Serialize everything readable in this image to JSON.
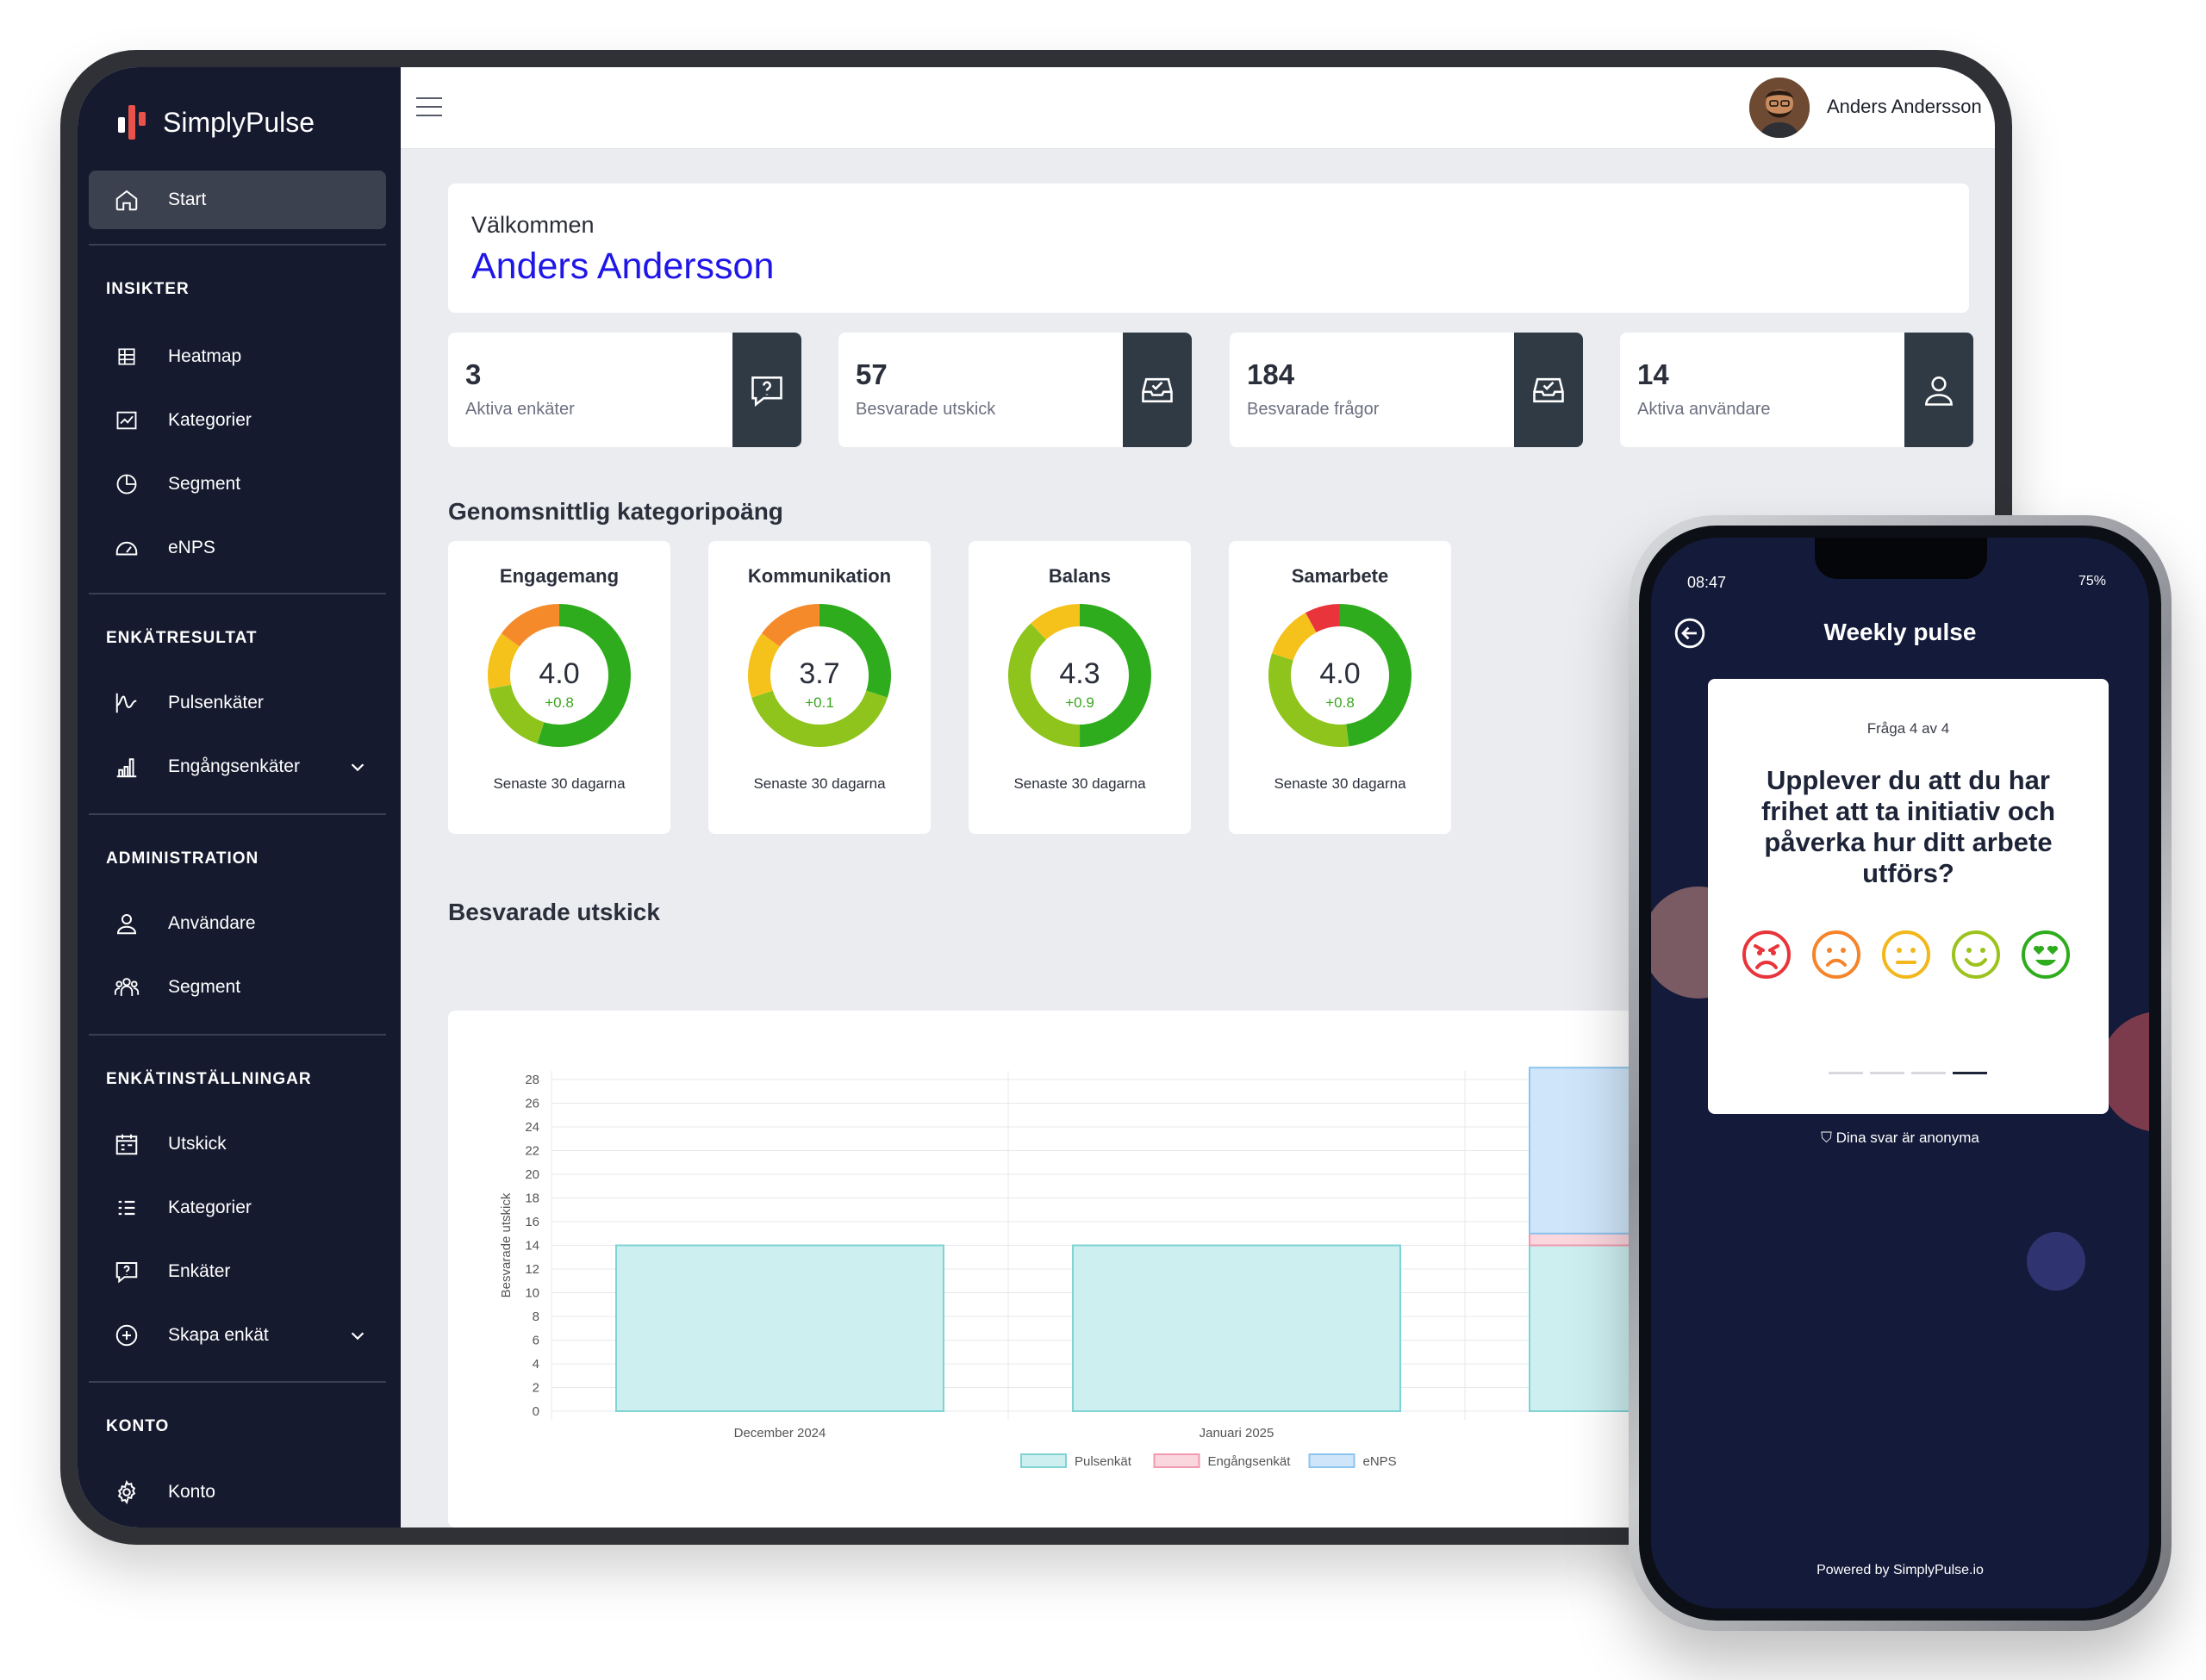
{
  "brand": {
    "name": "SimplyPulse"
  },
  "sidebar": {
    "start": "Start",
    "insikter": {
      "title": "INSIKTER",
      "items": [
        {
          "label": "Heatmap",
          "icon": "table-icon"
        },
        {
          "label": "Kategorier",
          "icon": "chart-icon"
        },
        {
          "label": "Segment",
          "icon": "pie-icon"
        },
        {
          "label": "eNPS",
          "icon": "gauge-icon"
        }
      ]
    },
    "enkatresultat": {
      "title": "ENKÄTRESULTAT",
      "items": [
        {
          "label": "Pulsenkäter",
          "icon": "pulse-icon"
        },
        {
          "label": "Engångsenkäter",
          "icon": "bar-chart-icon"
        }
      ]
    },
    "administration": {
      "title": "ADMINISTRATION",
      "items": [
        {
          "label": "Användare",
          "icon": "user-icon"
        },
        {
          "label": "Segment",
          "icon": "group-icon"
        }
      ]
    },
    "enkatinstallningar": {
      "title": "ENKÄTINSTÄLLNINGAR",
      "items": [
        {
          "label": "Utskick",
          "icon": "calendar-icon"
        },
        {
          "label": "Kategorier",
          "icon": "list-icon"
        },
        {
          "label": "Enkäter",
          "icon": "question-icon"
        },
        {
          "label": "Skapa enkät",
          "icon": "plus-circle-icon"
        }
      ]
    },
    "konto": {
      "title": "KONTO",
      "items": [
        {
          "label": "Konto",
          "icon": "gear-icon"
        }
      ]
    }
  },
  "topbar": {
    "user_name": "Anders Andersson"
  },
  "welcome": {
    "greeting": "Välkommen",
    "name": "Anders Andersson"
  },
  "stats": [
    {
      "value": "3",
      "label": "Aktiva enkäter",
      "icon": "question-chat-icon"
    },
    {
      "value": "57",
      "label": "Besvarade utskick",
      "icon": "inbox-check-icon"
    },
    {
      "value": "184",
      "label": "Besvarade frågor",
      "icon": "inbox-check-icon"
    },
    {
      "value": "14",
      "label": "Aktiva användare",
      "icon": "user-icon"
    }
  ],
  "categories_heading": "Genomsnittlig kategoripoäng",
  "gauges": [
    {
      "title": "Engagemang",
      "value": "4.0",
      "delta": "+0.8",
      "footer": "Senaste 30 dagarna",
      "score": 4.0
    },
    {
      "title": "Kommunikation",
      "value": "3.7",
      "delta": "+0.1",
      "footer": "Senaste 30 dagarna",
      "score": 3.7
    },
    {
      "title": "Balans",
      "value": "4.3",
      "delta": "+0.9",
      "footer": "Senaste 30 dagarna",
      "score": 4.3
    },
    {
      "title": "Samarbete",
      "value": "4.0",
      "delta": "+0.8",
      "footer": "Senaste 30 dagarna",
      "score": 4.0
    }
  ],
  "chart_heading": "Besvarade utskick",
  "chart_data": {
    "type": "bar",
    "categories": [
      "December 2024",
      "Januari 2025",
      ""
    ],
    "series": [
      {
        "name": "Pulsenkät",
        "values": [
          14,
          14,
          14
        ],
        "color": "#cdeff0"
      },
      {
        "name": "Engångsenkät",
        "values": [
          0,
          0,
          1
        ],
        "color": "#fad6de"
      },
      {
        "name": "eNPS",
        "values": [
          0,
          0,
          14
        ],
        "color": "#cfe6fa"
      }
    ],
    "ylabel": "Besvarade utskick",
    "ylim": [
      0,
      28
    ],
    "yticks": [
      0,
      2,
      4,
      6,
      8,
      10,
      12,
      14,
      16,
      18,
      20,
      22,
      24,
      26,
      28
    ],
    "stacked": true,
    "grid": true,
    "legend": "bottom"
  },
  "phone": {
    "time": "08:47",
    "status": "75%",
    "title": "Weekly pulse",
    "question_count": "Fråga 4 av 4",
    "question": "Upplever du att du har frihet att ta initiativ och påverka hur ditt arbete utförs?",
    "anonymous": "Dina svar är anonyma",
    "powered": "Powered by SimplyPulse.io",
    "faces": [
      {
        "icon": "angry-face-icon",
        "color": "#e8343a"
      },
      {
        "icon": "sad-face-icon",
        "color": "#f5842a"
      },
      {
        "icon": "neutral-face-icon",
        "color": "#f2b71b"
      },
      {
        "icon": "smile-face-icon",
        "color": "#9bc31c"
      },
      {
        "icon": "love-face-icon",
        "color": "#2eac1d"
      }
    ]
  }
}
